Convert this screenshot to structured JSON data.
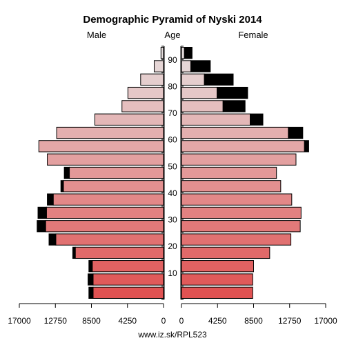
{
  "chart_data": {
    "type": "bar",
    "title": "Demographic Pyramid of Nyski 2014",
    "left_label": "Male",
    "center_label": "Age",
    "right_label": "Female",
    "source": "www.iz.sk/RPL523",
    "age_ticks": [
      "10",
      "20",
      "30",
      "40",
      "50",
      "60",
      "70",
      "80",
      "90"
    ],
    "tick_values_left": [
      "17000",
      "12750",
      "8500",
      "4250",
      "0"
    ],
    "tick_values_right": [
      "0",
      "4250",
      "8500",
      "12750",
      "17000"
    ],
    "x_max": 17000,
    "age_groups": [
      "0-4",
      "5-9",
      "10-14",
      "15-19",
      "20-24",
      "25-29",
      "30-34",
      "35-39",
      "40-44",
      "45-49",
      "50-54",
      "55-59",
      "60-64",
      "65-69",
      "70-74",
      "75-79",
      "80-84",
      "85-89",
      "90+"
    ],
    "male_base": [
      8300,
      8300,
      8400,
      10400,
      12700,
      13900,
      13800,
      13000,
      11800,
      11100,
      13700,
      14700,
      12600,
      8100,
      4900,
      4200,
      2700,
      1100,
      300
    ],
    "male_excess": [
      500,
      600,
      400,
      300,
      800,
      1000,
      1000,
      700,
      300,
      600,
      0,
      0,
      0,
      0,
      0,
      0,
      0,
      0,
      0
    ],
    "female_base": [
      8400,
      8400,
      8500,
      10400,
      12900,
      14000,
      14100,
      13000,
      11700,
      11200,
      13500,
      14500,
      12600,
      8100,
      4900,
      4200,
      2700,
      1100,
      350
    ],
    "female_excess": [
      0,
      0,
      0,
      0,
      0,
      0,
      0,
      0,
      0,
      0,
      0,
      500,
      1700,
      1500,
      2600,
      3600,
      3400,
      2300,
      900
    ],
    "colors": {
      "young": "#e05252",
      "old": "#e6dede",
      "excess": "#000000"
    }
  }
}
